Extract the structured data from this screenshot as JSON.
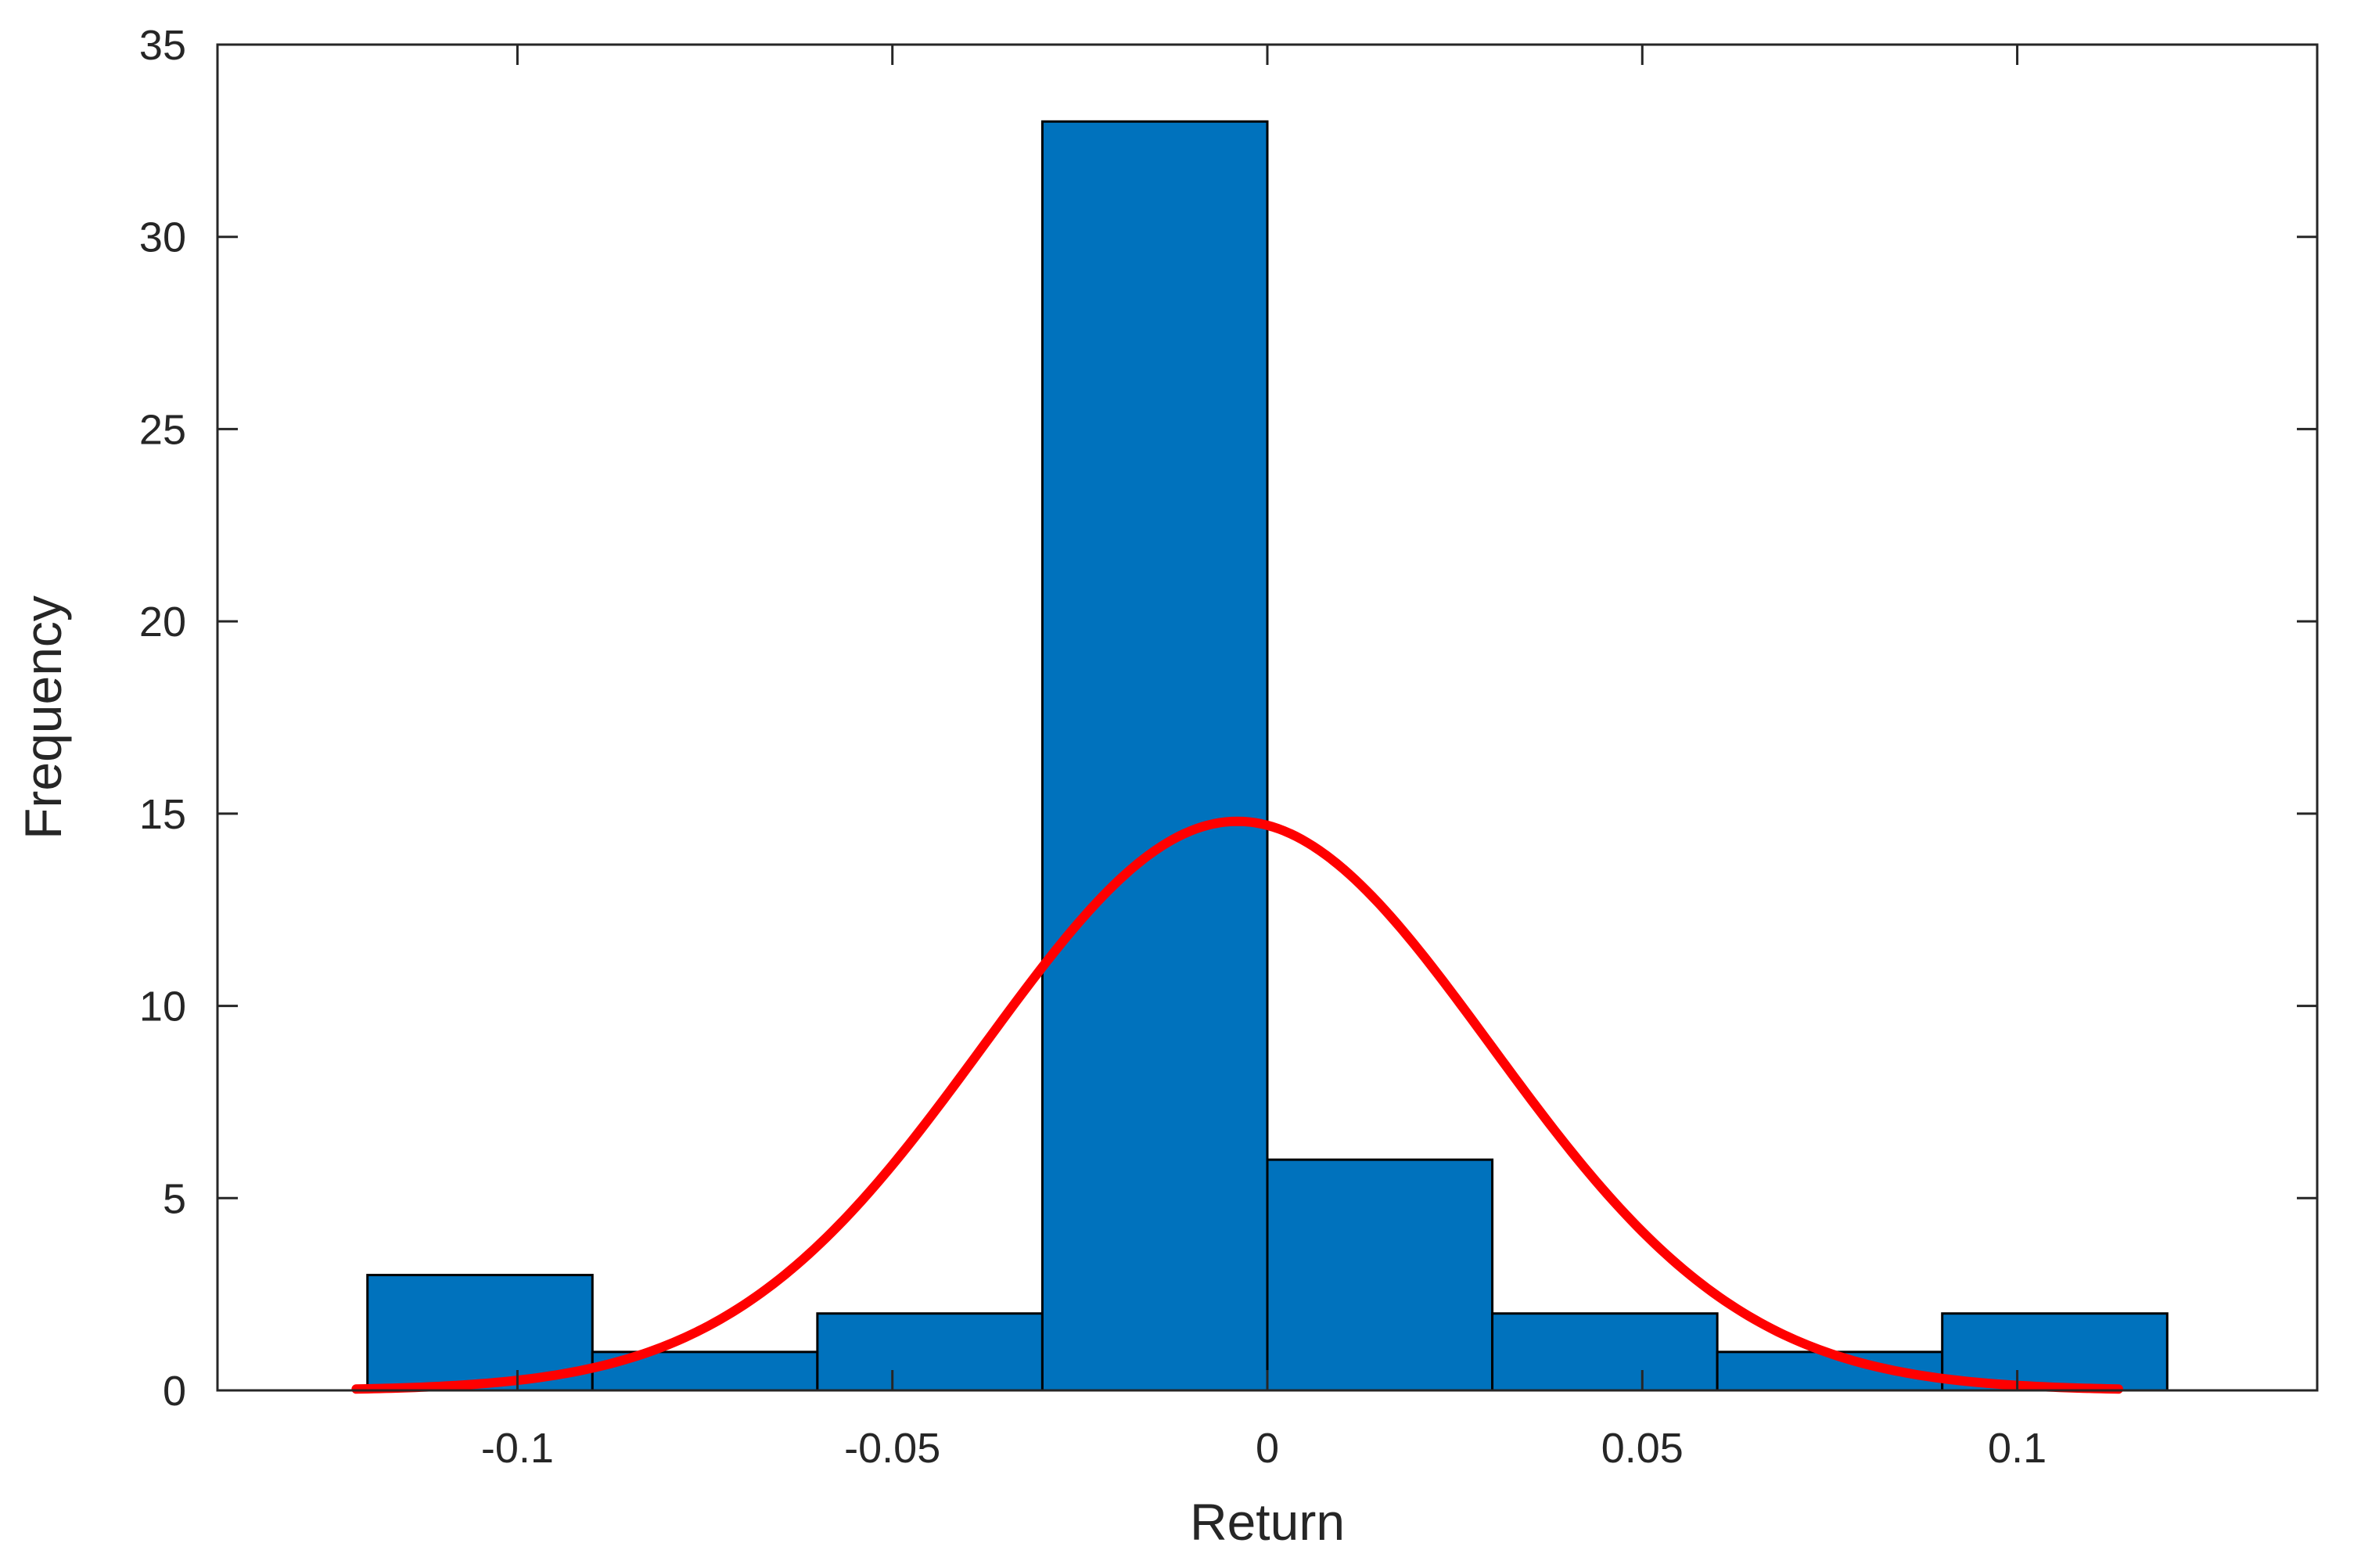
{
  "chart_data": {
    "type": "bar",
    "subtype": "histogram-with-fit",
    "title": "",
    "xlabel": "Return",
    "ylabel": "Frequency",
    "xlim": [
      -0.14,
      0.14
    ],
    "ylim": [
      0,
      35
    ],
    "xticks": [
      -0.1,
      -0.05,
      0,
      0.05,
      0.1
    ],
    "xtick_labels": [
      "-0.1",
      "-0.05",
      "0",
      "0.05",
      "0.1"
    ],
    "yticks": [
      0,
      5,
      10,
      15,
      20,
      25,
      30,
      35
    ],
    "ytick_labels": [
      "0",
      "5",
      "10",
      "15",
      "20",
      "25",
      "30",
      "35"
    ],
    "grid": false,
    "bins": [
      {
        "x0": -0.12,
        "x1": -0.09,
        "count": 3
      },
      {
        "x0": -0.09,
        "x1": -0.06,
        "count": 1
      },
      {
        "x0": -0.06,
        "x1": -0.03,
        "count": 2
      },
      {
        "x0": -0.03,
        "x1": 0.0,
        "count": 33
      },
      {
        "x0": 0.0,
        "x1": 0.03,
        "count": 6
      },
      {
        "x0": 0.03,
        "x1": 0.06,
        "count": 2
      },
      {
        "x0": 0.06,
        "x1": 0.09,
        "count": 1
      },
      {
        "x0": 0.09,
        "x1": 0.12,
        "count": 2
      }
    ],
    "fit": {
      "distribution": "normal",
      "mean": -0.004,
      "std": 0.0338,
      "peak": 14.8,
      "x_range": [
        -0.1215,
        0.1135
      ]
    },
    "colors": {
      "bar_fill": "#0072BD",
      "bar_edge": "#000000",
      "fit_line": "#FF0000",
      "axis": "#262626"
    }
  }
}
